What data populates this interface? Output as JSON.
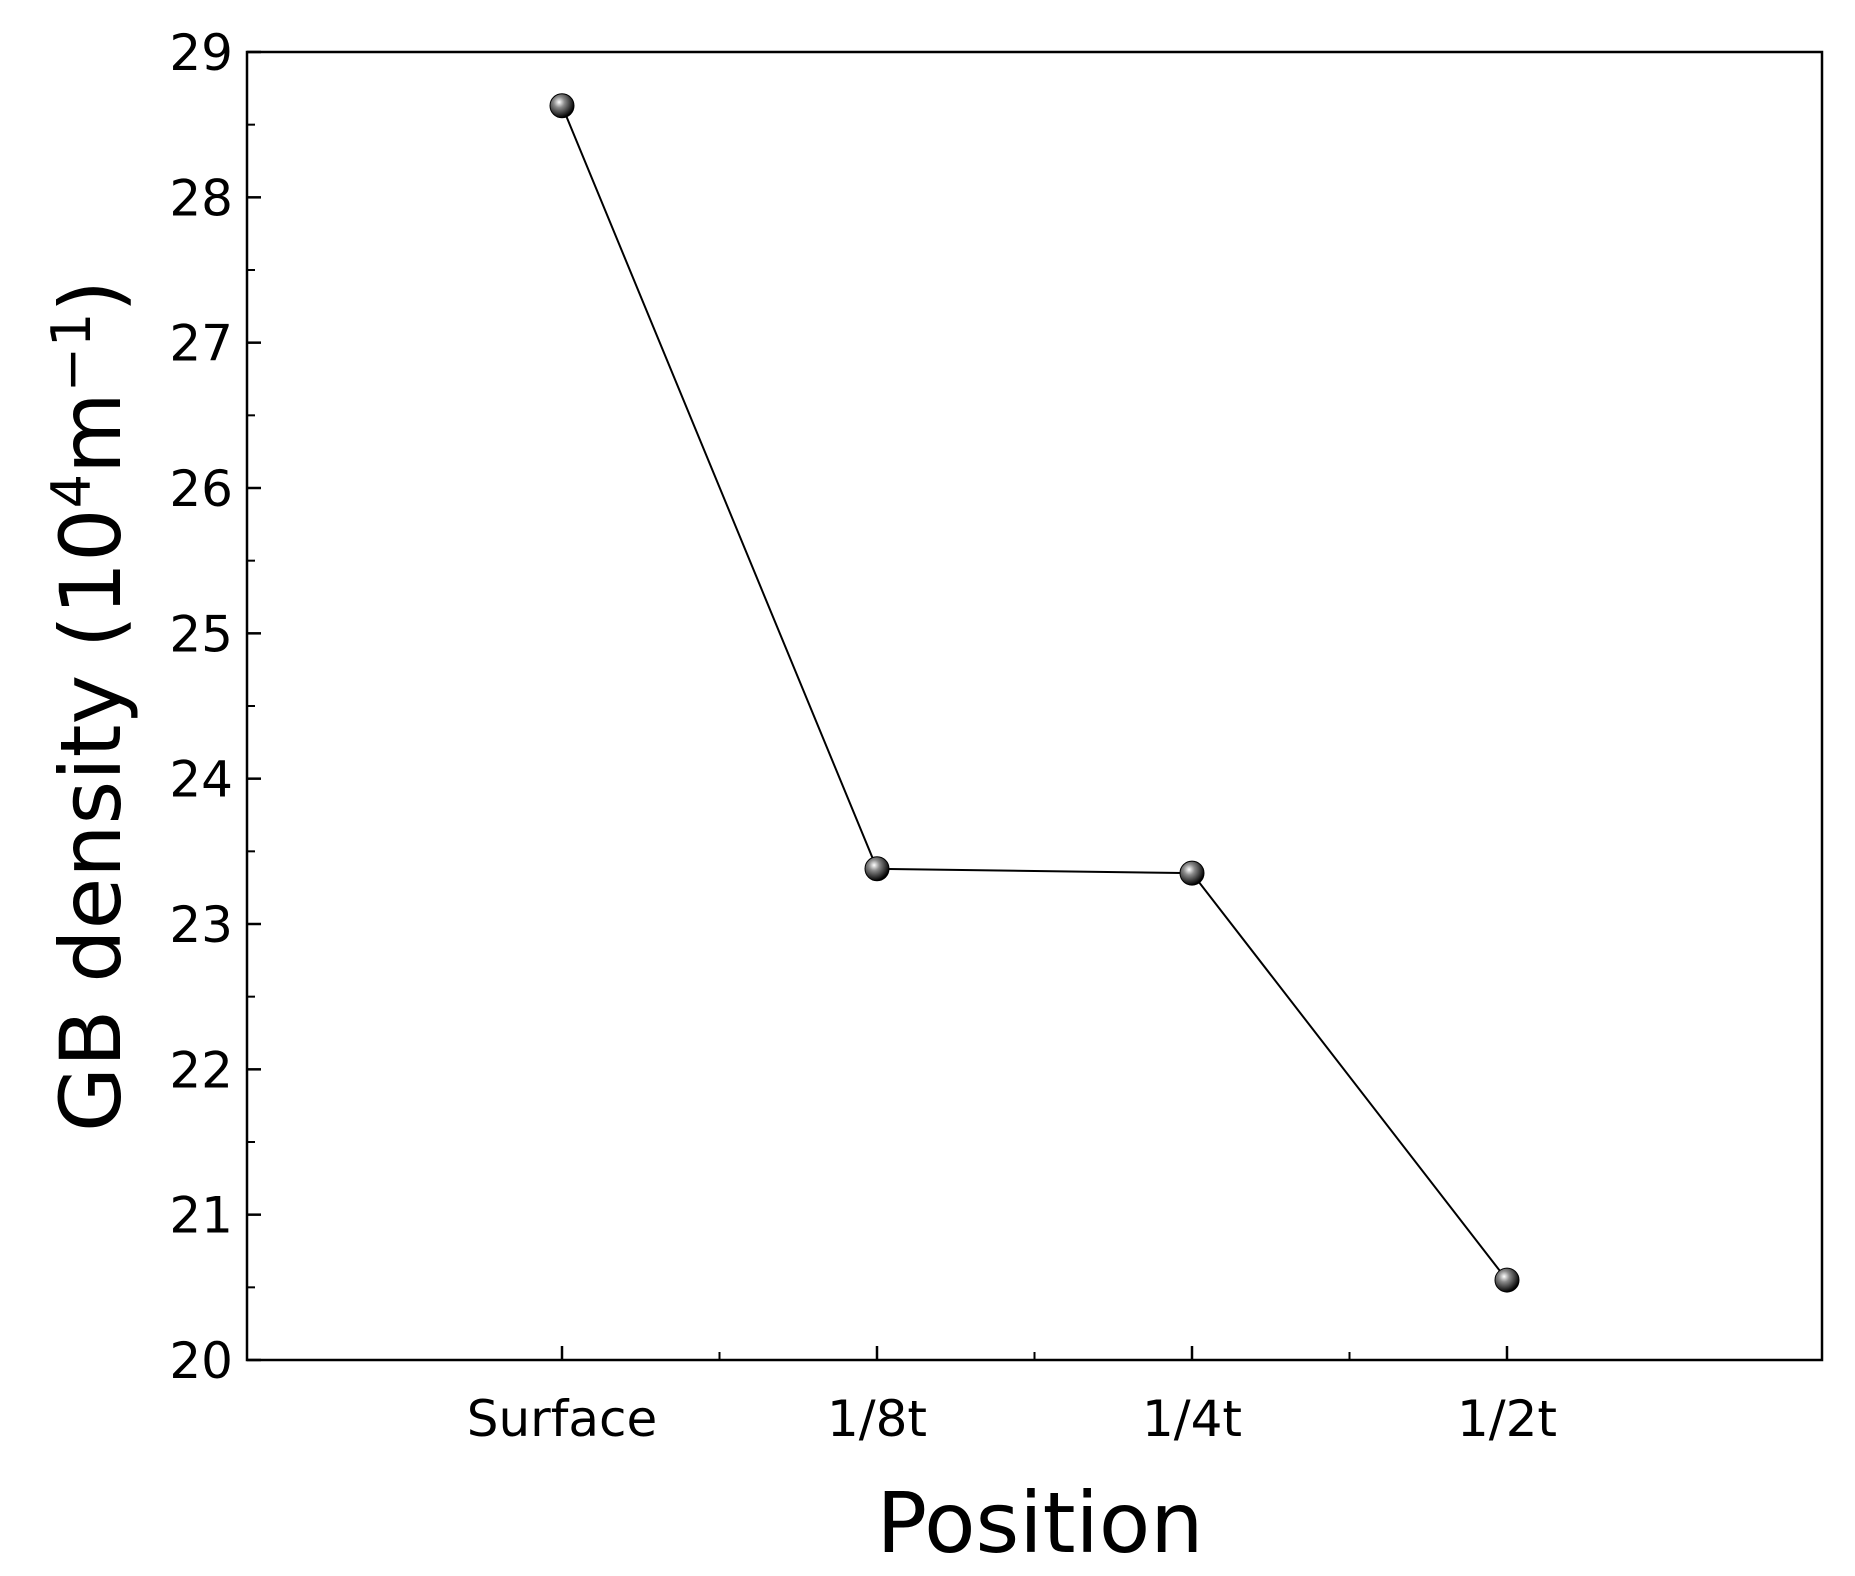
{
  "chart_data": {
    "type": "line",
    "title": "",
    "xlabel": "Position",
    "ylabel": {
      "prefix": "GB density (10",
      "sup1": "4",
      "mid": "m",
      "sup2": "−1",
      "suffix": ")"
    },
    "categories": [
      "Surface",
      "1/8t",
      "1/4t",
      "1/2t"
    ],
    "series": [
      {
        "values": [
          28.63,
          23.38,
          23.35,
          20.55
        ]
      }
    ],
    "ylim": [
      20,
      29
    ],
    "yticks": [
      "20",
      "21",
      "22",
      "23",
      "24",
      "25",
      "26",
      "27",
      "28",
      "29"
    ],
    "grid": false,
    "legend": "none",
    "colors": {
      "line": "#000000",
      "marker": "#000000",
      "marker_highlight": "#ffffff"
    }
  }
}
